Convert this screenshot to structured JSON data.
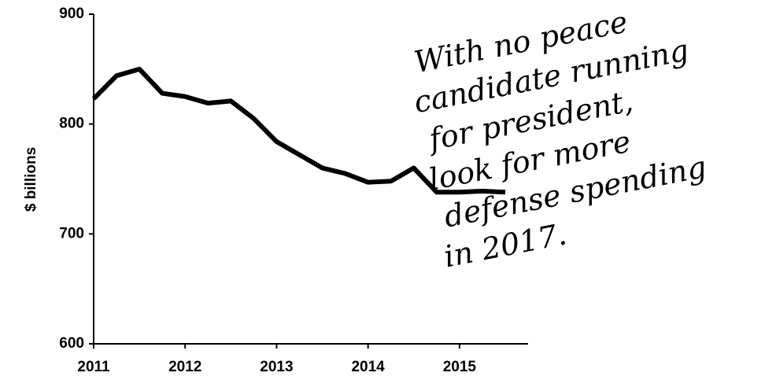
{
  "chart_data": {
    "type": "line",
    "y_label": "$ billions",
    "annotation": [
      "With no peace",
      "candidate running",
      "for president,",
      "look for more",
      "defense spending",
      "in 2017."
    ],
    "x": [
      2011,
      2011.25,
      2011.5,
      2011.75,
      2012,
      2012.25,
      2012.5,
      2012.75,
      2013,
      2013.25,
      2013.5,
      2013.75,
      2014,
      2014.25,
      2014.5,
      2014.75,
      2015,
      2015.25,
      2015.5
    ],
    "series": [
      {
        "name": "Defense spending",
        "color": "#000000",
        "values": [
          823,
          844,
          850,
          828,
          825,
          819,
          821,
          805,
          784,
          772,
          760,
          755,
          747,
          748,
          760,
          738,
          738,
          739,
          738
        ]
      }
    ],
    "xlim": [
      2011,
      2015.75
    ],
    "xticks": [
      2011,
      2012,
      2013,
      2014,
      2015
    ],
    "ylim": [
      600,
      900
    ],
    "yticks": [
      600,
      700,
      800,
      900
    ]
  }
}
